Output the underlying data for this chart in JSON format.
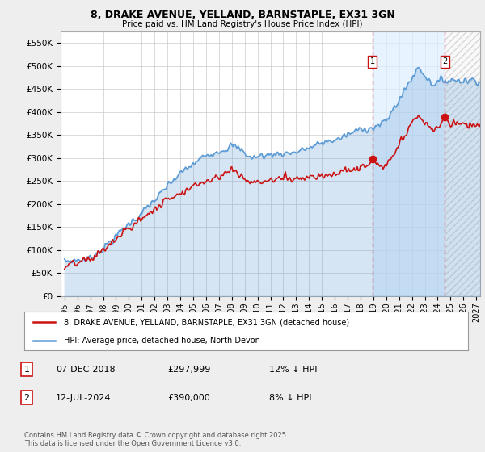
{
  "title": "8, DRAKE AVENUE, YELLAND, BARNSTAPLE, EX31 3GN",
  "subtitle": "Price paid vs. HM Land Registry's House Price Index (HPI)",
  "ylim": [
    0,
    575000
  ],
  "yticks": [
    0,
    50000,
    100000,
    150000,
    200000,
    250000,
    300000,
    350000,
    400000,
    450000,
    500000,
    550000
  ],
  "xlim_start": 1994.7,
  "xlim_end": 2027.3,
  "xticks": [
    1995,
    1996,
    1997,
    1998,
    1999,
    2000,
    2001,
    2002,
    2003,
    2004,
    2005,
    2006,
    2007,
    2008,
    2009,
    2010,
    2011,
    2012,
    2013,
    2014,
    2015,
    2016,
    2017,
    2018,
    2019,
    2020,
    2021,
    2022,
    2023,
    2024,
    2025,
    2026,
    2027
  ],
  "hpi_color": "#5b9bd5",
  "hpi_fill_color": "#d6e8f7",
  "price_color": "#cc1111",
  "sale1_year": 2018.92,
  "sale1_price": 297999,
  "sale2_year": 2024.54,
  "sale2_price": 390000,
  "between_fill_color": "#ddeeff",
  "legend_house_label": "8, DRAKE AVENUE, YELLAND, BARNSTAPLE, EX31 3GN (detached house)",
  "legend_hpi_label": "HPI: Average price, detached house, North Devon",
  "table_row1": [
    "1",
    "07-DEC-2018",
    "£297,999",
    "12% ↓ HPI"
  ],
  "table_row2": [
    "2",
    "12-JUL-2024",
    "£390,000",
    "8% ↓ HPI"
  ],
  "footer": "Contains HM Land Registry data © Crown copyright and database right 2025.\nThis data is licensed under the Open Government Licence v3.0.",
  "bg_color": "#eeeeee",
  "plot_bg_color": "#ffffff",
  "grid_color": "#cccccc"
}
